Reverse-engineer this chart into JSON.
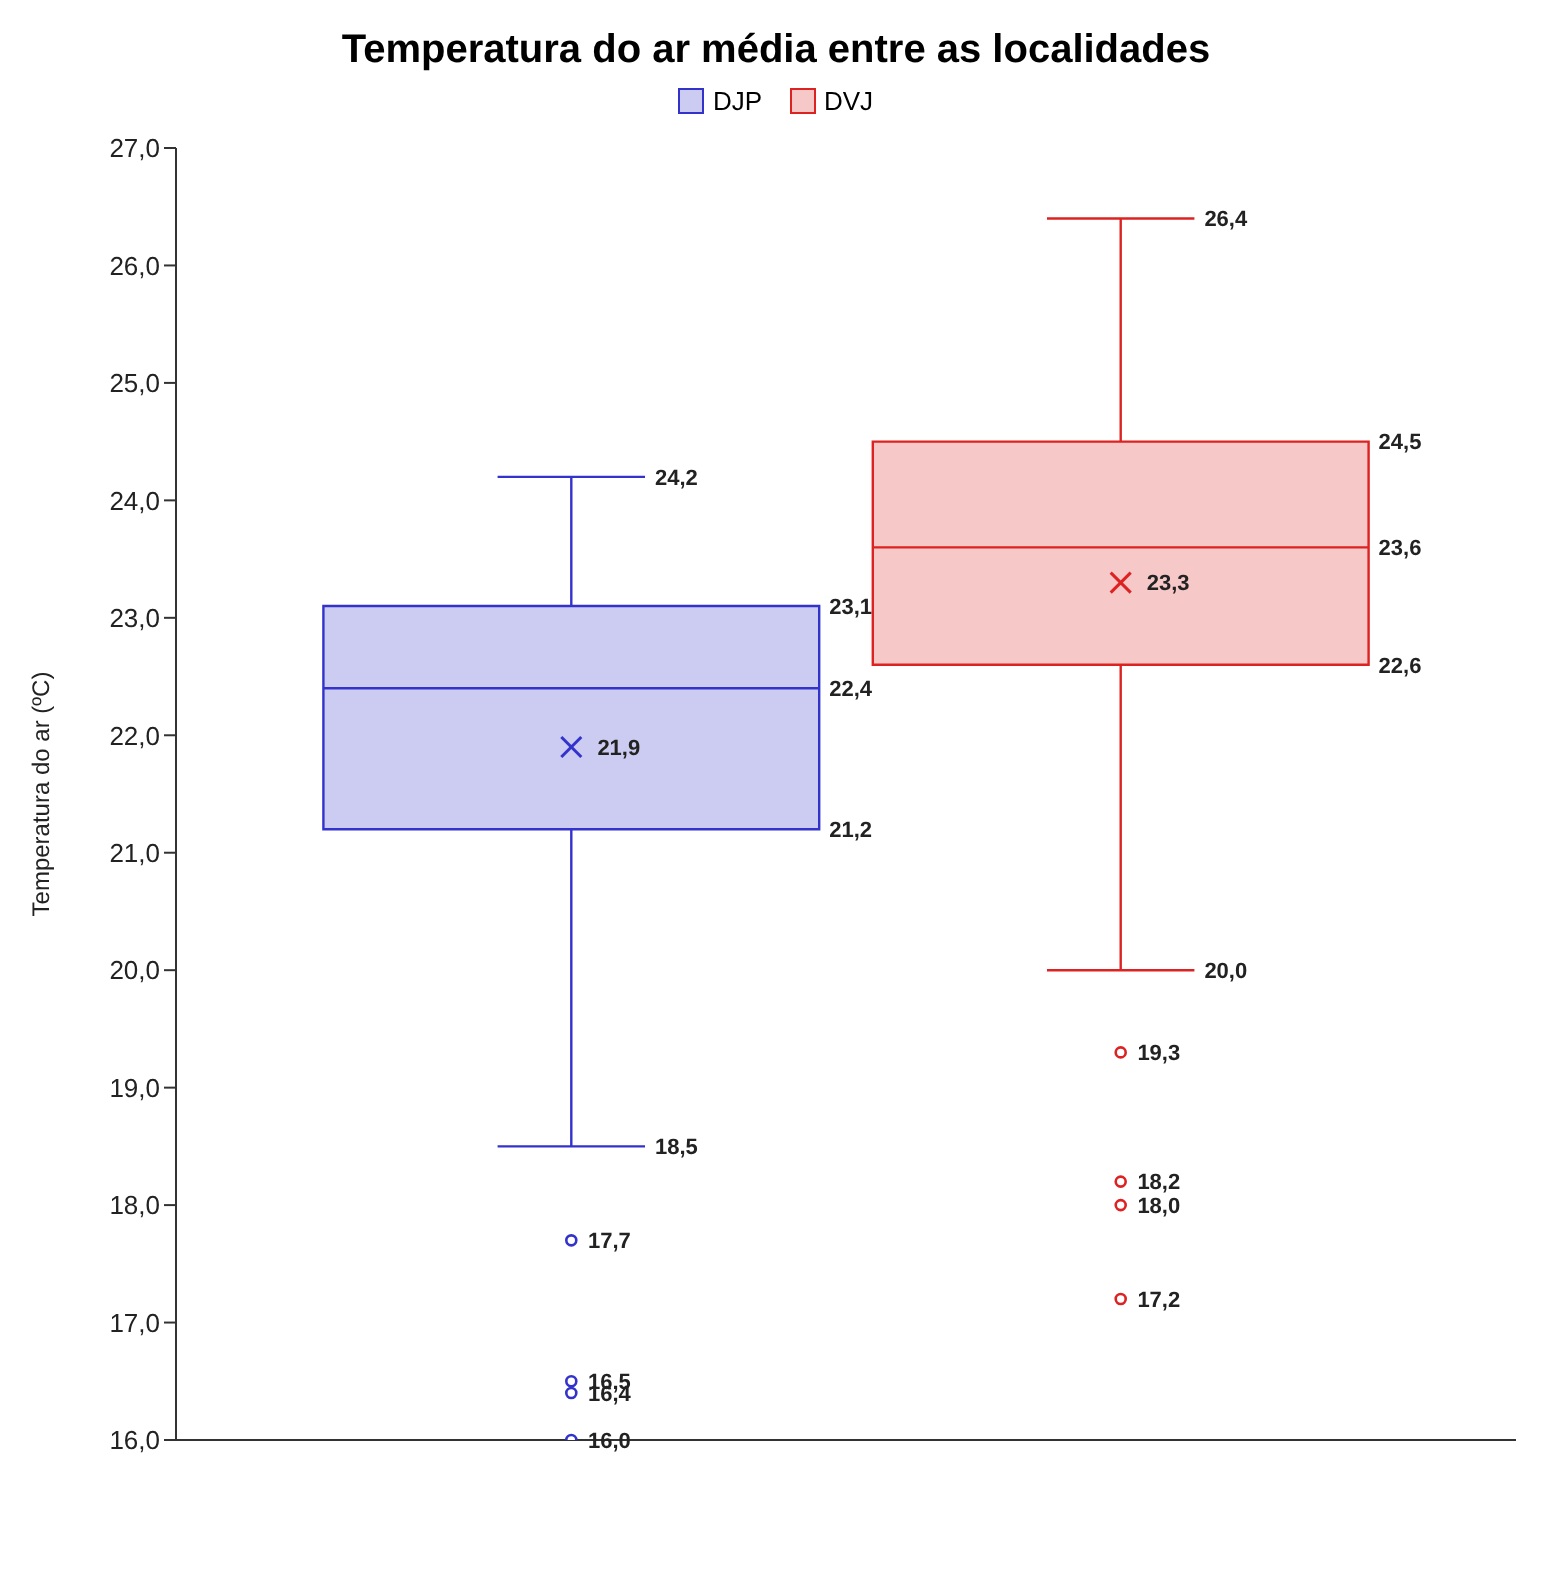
{
  "chart_data": {
    "type": "box",
    "title": "Temperatura do ar média entre as localidades",
    "ylabel": "Temperatura do ar (ºC)",
    "categories": [
      null
    ],
    "series": [
      {
        "name": "DJP",
        "color": "#3333cc",
        "boxes": [
          {
            "low": 18.5,
            "q1": 21.2,
            "median": 22.4,
            "q3": 23.1,
            "high": 24.2,
            "mean": 21.9,
            "outliers": [
              17.7,
              16.5,
              16.4,
              16.0
            ]
          }
        ],
        "value_labels": [
          [
            "18,5",
            "21,2",
            "22,4",
            "23,1",
            "24,2",
            "21,9",
            "17,7",
            "16,5",
            "16,4",
            "16,0"
          ]
        ]
      },
      {
        "name": "DVJ",
        "color": "#dd2222",
        "boxes": [
          {
            "low": 20.0,
            "q1": 22.6,
            "median": 23.6,
            "q3": 24.5,
            "high": 26.4,
            "mean": 23.3,
            "outliers": [
              19.3,
              18.2,
              18.0,
              17.2
            ]
          }
        ],
        "value_labels": [
          [
            "20,0",
            "22,6",
            "23,6",
            "24,5",
            "26,4",
            "23,3",
            "19,3",
            "18,2",
            "18,0",
            "17,2"
          ]
        ]
      }
    ],
    "ylim": [
      16,
      27
    ],
    "yticks": [
      {
        "value": 16,
        "label": "16,0"
      },
      {
        "value": 17,
        "label": "17,0"
      },
      {
        "value": 18,
        "label": "18,0"
      },
      {
        "value": 19,
        "label": "19,0"
      },
      {
        "value": 20,
        "label": "20,0"
      },
      {
        "value": 21,
        "label": "21,0"
      },
      {
        "value": 22,
        "label": "22,0"
      },
      {
        "value": 23,
        "label": "23,0"
      },
      {
        "value": 24,
        "label": "24,0"
      },
      {
        "value": 25,
        "label": "25,0"
      },
      {
        "value": 26,
        "label": "26,0"
      },
      {
        "value": 27,
        "label": "27,0"
      }
    ],
    "tick_labels": "y",
    "grid": false,
    "legend": "top",
    "marker": "circle"
  }
}
